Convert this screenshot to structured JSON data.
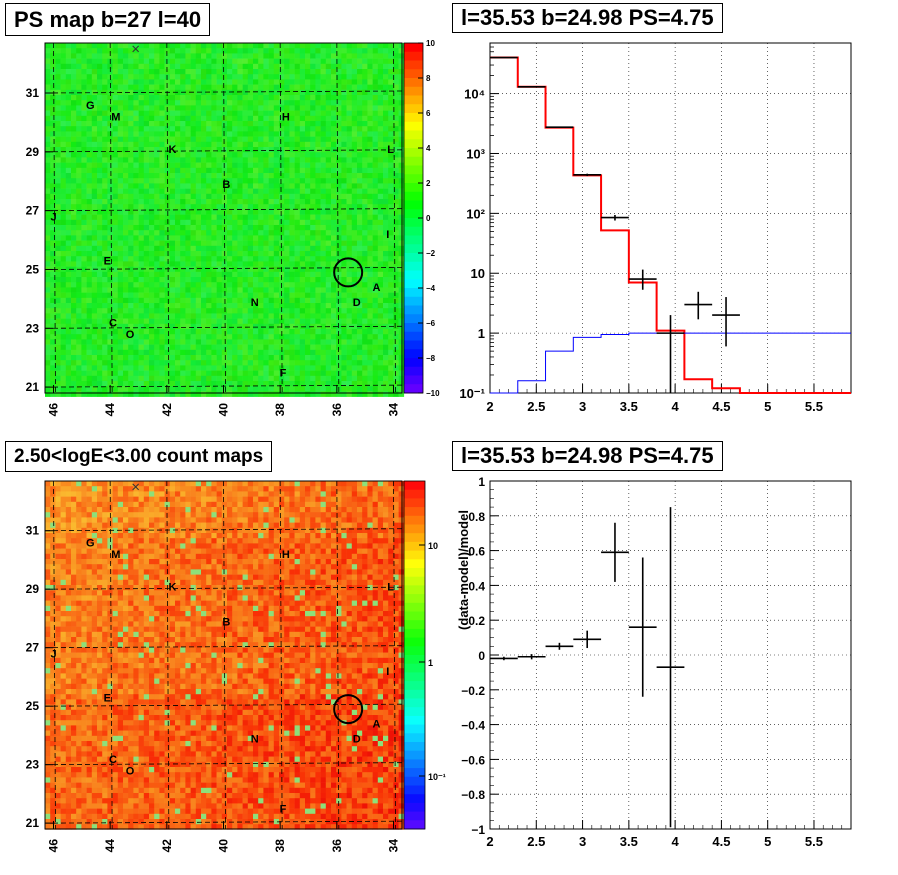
{
  "chart_data": [
    {
      "type": "heatmap",
      "title": "PS map b=27 l=40",
      "x_ticks": [
        "46",
        "44",
        "42",
        "40",
        "38",
        "36",
        "34"
      ],
      "y_ticks": [
        "21",
        "23",
        "25",
        "27",
        "29",
        "31"
      ],
      "xlim": [
        46.3,
        33.7
      ],
      "ylim": [
        20.8,
        32.7
      ],
      "colorbar": {
        "min": -10,
        "max": 10,
        "ticks": [
          "10",
          "8",
          "6",
          "4",
          "2",
          "0",
          "−2",
          "−4",
          "−6",
          "−8",
          "−10"
        ]
      },
      "grid": true,
      "labels": [
        {
          "text": "G",
          "lon": 44.7,
          "lat": 30.6
        },
        {
          "text": "M",
          "lon": 43.8,
          "lat": 30.2
        },
        {
          "text": "H",
          "lon": 37.8,
          "lat": 30.2
        },
        {
          "text": "K",
          "lon": 41.8,
          "lat": 29.1
        },
        {
          "text": "L",
          "lon": 34.1,
          "lat": 29.1
        },
        {
          "text": "B",
          "lon": 39.9,
          "lat": 27.9
        },
        {
          "text": "J",
          "lon": 46.0,
          "lat": 26.8
        },
        {
          "text": "I",
          "lon": 34.2,
          "lat": 26.2
        },
        {
          "text": "E",
          "lon": 44.1,
          "lat": 25.3
        },
        {
          "text": "A",
          "lon": 34.6,
          "lat": 24.4
        },
        {
          "text": "N",
          "lon": 38.9,
          "lat": 23.9
        },
        {
          "text": "D",
          "lon": 35.3,
          "lat": 23.9
        },
        {
          "text": "C",
          "lon": 43.9,
          "lat": 23.2
        },
        {
          "text": "O",
          "lon": 43.3,
          "lat": 22.8
        },
        {
          "text": "F",
          "lon": 37.9,
          "lat": 21.5
        }
      ],
      "circle": {
        "lon": 35.6,
        "lat": 24.9
      },
      "cross": {
        "lon": 43.1,
        "lat": 32.5
      }
    },
    {
      "type": "line",
      "title": "l=35.53 b=24.98 PS=4.75",
      "scale_y": "log",
      "xlim": [
        2.0,
        5.9
      ],
      "ylim": [
        0.1,
        70000
      ],
      "x_ticks": [
        "2",
        "2.5",
        "3",
        "3.5",
        "4",
        "4.5",
        "5",
        "5.5"
      ],
      "y_ticks": [
        "10⁻¹",
        "1",
        "10",
        "10²",
        "10³",
        "10⁴"
      ],
      "series": [
        {
          "role": "model-total",
          "color": "#ff0000",
          "edges": [
            2.0,
            2.3,
            2.6,
            2.9,
            3.2,
            3.5,
            3.8,
            4.1,
            4.4,
            4.7,
            5.0,
            5.3,
            5.6,
            5.9
          ],
          "values": [
            40000,
            13000,
            2700,
            430,
            52,
            7,
            1.1,
            0.17,
            0.12,
            0.1,
            0.1,
            0.1,
            0.1
          ]
        },
        {
          "role": "model-source",
          "color": "#0000ff",
          "edges": [
            2.0,
            2.3,
            2.6,
            2.9,
            3.2,
            3.5,
            3.8,
            4.1,
            4.4,
            4.7,
            5.0,
            5.3,
            5.6,
            5.9
          ],
          "values": [
            0.1,
            0.16,
            0.5,
            0.85,
            0.95,
            1.0,
            1.0,
            1.0,
            1.0,
            1.0,
            1.0,
            1.0,
            1.0
          ]
        },
        {
          "role": "data",
          "color": "#000000",
          "points": [
            {
              "x": 2.15,
              "xerr": 0.15,
              "y": 40000,
              "ylo": 39600,
              "yhi": 40400
            },
            {
              "x": 2.45,
              "xerr": 0.15,
              "y": 13000,
              "ylo": 12900,
              "yhi": 13100
            },
            {
              "x": 2.75,
              "xerr": 0.15,
              "y": 2750,
              "ylo": 2700,
              "yhi": 2800
            },
            {
              "x": 3.05,
              "xerr": 0.15,
              "y": 440,
              "ylo": 420,
              "yhi": 460
            },
            {
              "x": 3.35,
              "xerr": 0.15,
              "y": 85,
              "ylo": 76,
              "yhi": 94
            },
            {
              "x": 3.65,
              "xerr": 0.15,
              "y": 8,
              "ylo": 5.3,
              "yhi": 11.5
            },
            {
              "x": 3.95,
              "xerr": 0.15,
              "y": 1.0,
              "ylo": 0.1,
              "yhi": 2.0
            },
            {
              "x": 4.25,
              "xerr": 0.15,
              "y": 3.0,
              "ylo": 1.7,
              "yhi": 4.9
            },
            {
              "x": 4.55,
              "xerr": 0.15,
              "y": 2.0,
              "ylo": 0.6,
              "yhi": 4.0
            }
          ]
        }
      ]
    },
    {
      "type": "heatmap",
      "title": "2.50<logE<3.00 count maps",
      "x_ticks": [
        "46",
        "44",
        "42",
        "40",
        "38",
        "36",
        "34"
      ],
      "y_ticks": [
        "21",
        "23",
        "25",
        "27",
        "29",
        "31"
      ],
      "xlim": [
        46.3,
        33.7
      ],
      "ylim": [
        20.8,
        32.7
      ],
      "scale": "log",
      "colorbar": {
        "ticks": [
          "10",
          "1",
          "10⁻¹"
        ]
      },
      "grid": true
    },
    {
      "type": "scatter",
      "title": "l=35.53 b=24.98 PS=4.75",
      "ylabel": "(data-model)/model",
      "xlim": [
        2.0,
        5.9
      ],
      "ylim": [
        -1,
        1
      ],
      "x_ticks": [
        "2",
        "2.5",
        "3",
        "3.5",
        "4",
        "4.5",
        "5",
        "5.5"
      ],
      "y_ticks": [
        "1",
        "0.8",
        "0.6",
        "0.4",
        "0.2",
        "0",
        "−0.2",
        "−0.4",
        "−0.6",
        "−0.8",
        "−1"
      ],
      "points": [
        {
          "x": 2.15,
          "xerr": 0.15,
          "y": -0.02,
          "yerr": 0.01
        },
        {
          "x": 2.45,
          "xerr": 0.15,
          "y": -0.01,
          "yerr": 0.015
        },
        {
          "x": 2.75,
          "xerr": 0.15,
          "y": 0.05,
          "yerr": 0.02
        },
        {
          "x": 3.05,
          "xerr": 0.15,
          "y": 0.09,
          "yerr": 0.05
        },
        {
          "x": 3.35,
          "xerr": 0.15,
          "y": 0.59,
          "yerr": 0.17
        },
        {
          "x": 3.65,
          "xerr": 0.15,
          "y": 0.16,
          "yerr": 0.4
        },
        {
          "x": 3.95,
          "xerr": 0.15,
          "y": -0.07,
          "yerr": 0.92
        }
      ]
    }
  ]
}
